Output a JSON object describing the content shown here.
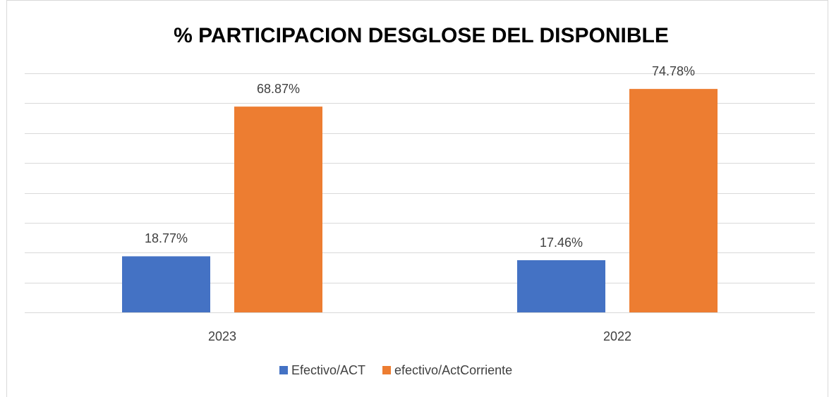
{
  "chart_data": {
    "type": "bar",
    "title": "% PARTICIPACION DESGLOSE DEL DISPONIBLE",
    "categories": [
      "2023",
      "2022"
    ],
    "series": [
      {
        "name": "Efectivo/ACT",
        "color": "#4472c4",
        "values": [
          18.77,
          17.46
        ],
        "value_labels": [
          "18.77%",
          "17.46%"
        ]
      },
      {
        "name": "efectivo/ActCorriente",
        "color": "#ed7d31",
        "values": [
          68.87,
          74.78
        ],
        "value_labels": [
          "68.87%",
          "74.78%"
        ]
      }
    ],
    "ylim": [
      0,
      80
    ],
    "yticks": [
      0,
      10,
      20,
      30,
      40,
      50,
      60,
      70,
      80
    ],
    "grid": true,
    "legend": "bottom"
  }
}
